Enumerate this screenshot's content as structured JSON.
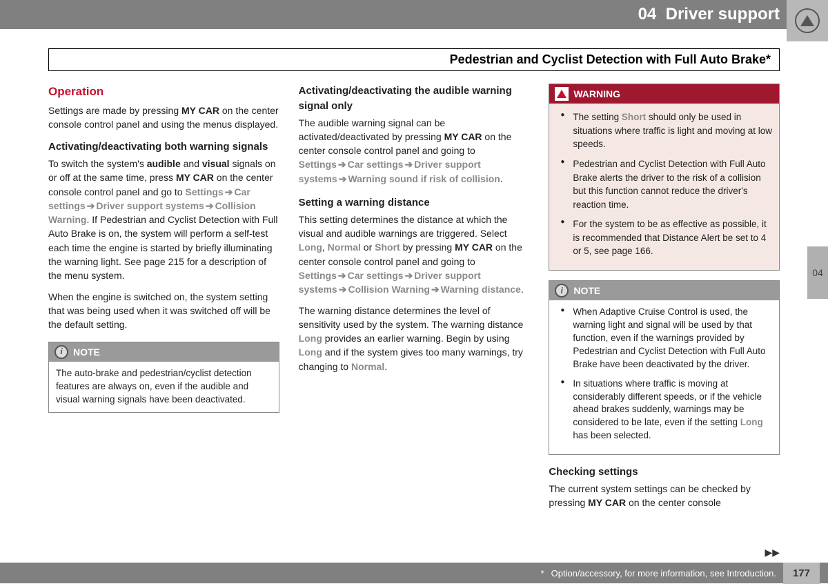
{
  "header": {
    "chapter": "04",
    "title": "Driver support"
  },
  "subtitle": "Pedestrian and Cyclist Detection with Full Auto Brake*",
  "col1": {
    "operation_heading": "Operation",
    "operation_p": "Settings are made by pressing MY CAR on the center console control panel and using the menus displayed.",
    "activating_both_heading": "Activating/deactivating both warning signals",
    "engine_on_p": "When the engine is switched on, the system setting that was being used when it was switched off will be the default setting.",
    "note1_title": "NOTE",
    "note1_body": "The auto-brake and pedestrian/cyclist detection features are always on, even if the audible and visual warning signals have been deactivated."
  },
  "col2": {
    "audible_heading": "Activating/deactivating the audible warning signal only",
    "distance_heading": "Setting a warning distance"
  },
  "col3": {
    "warning_title": "WARNING",
    "note2_title": "NOTE",
    "checking_heading": "Checking settings",
    "checking_p": "The current system settings can be checked by pressing MY CAR on the center console"
  },
  "side_tab": "04",
  "footer": {
    "text": "Option/accessory, for more information, see Introduction.",
    "asterisk": "*",
    "page": "177"
  }
}
